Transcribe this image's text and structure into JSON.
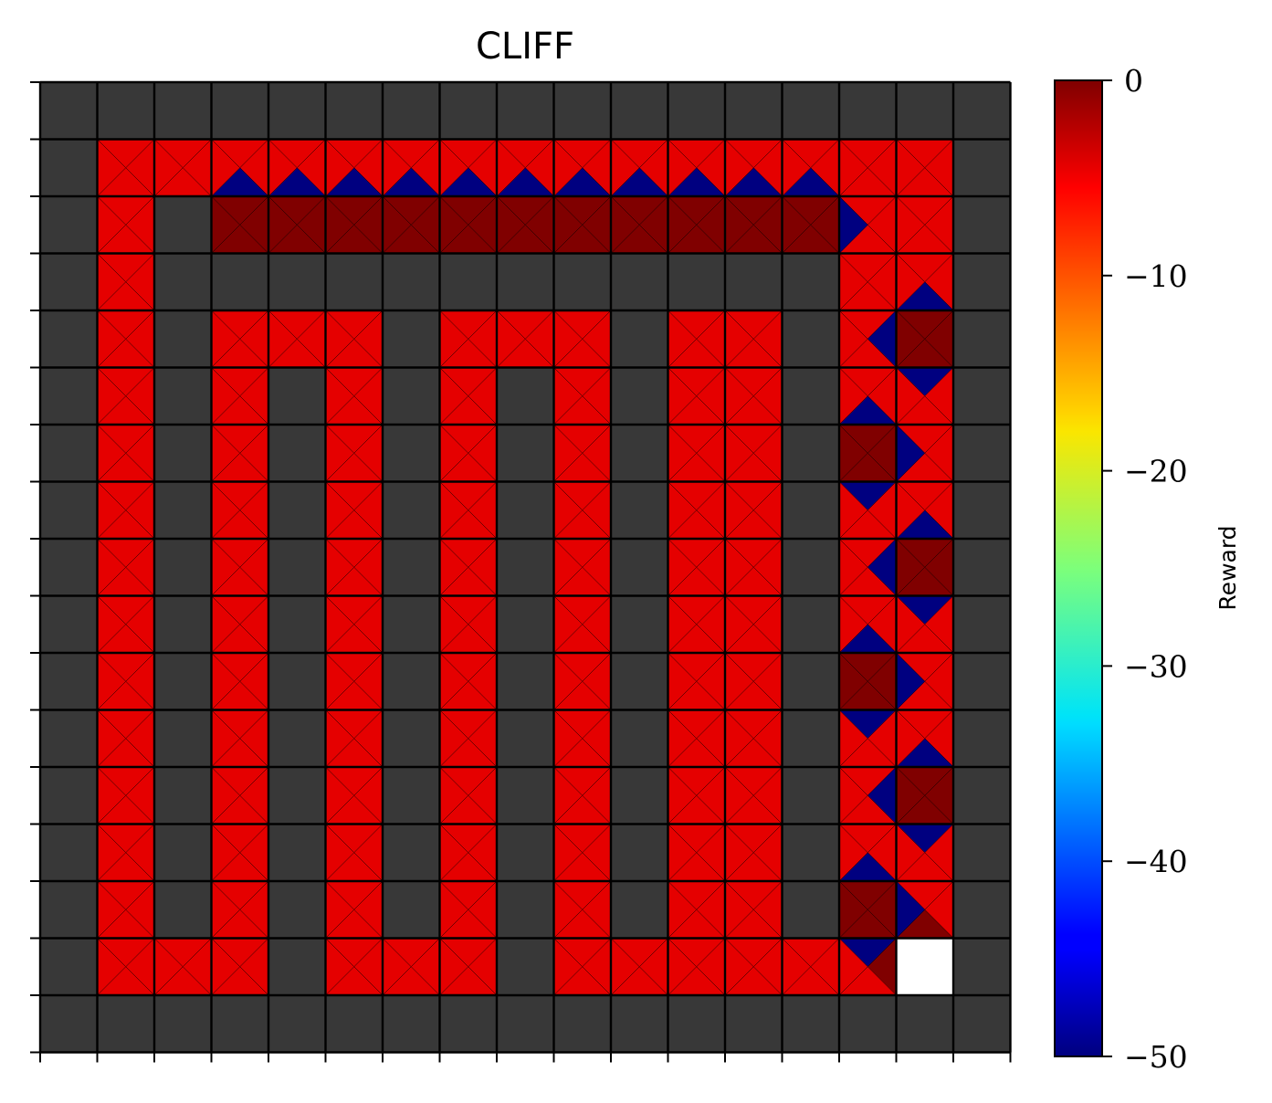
{
  "chart_data": {
    "type": "heatmap",
    "title": "CLIFF",
    "rows": 17,
    "cols": 17,
    "xlabel": "",
    "ylabel": "",
    "x_tick_labels": [],
    "y_tick_labels": [],
    "grid": true,
    "colormap": "jet",
    "colorbar": {
      "label": "Reward",
      "min": -50,
      "max": 0,
      "ticks": [
        0,
        -10,
        -20,
        -30,
        -40,
        -50
      ],
      "tick_labels": [
        "0",
        "−10",
        "−20",
        "−30",
        "−40",
        "−50"
      ],
      "placement": "right"
    },
    "wall_color": "#383838",
    "goal_color": "#ffffff",
    "cell_legend": {
      "W": "wall",
      "G": "goal",
      "R": "state"
    },
    "grid_cells": [
      "WWWWWWWWWWWWWWWWW",
      "WRRRRRRRRRRRRRRRW",
      "WRWRRRRRRRRRRRRRW",
      "WRWWWWWWWWWWWWRRW",
      "WRWRRRWRRRWRRWRRW",
      "WRWRWRWRWRWRRWRRW",
      "WRWRWRWRWRWRRWRRW",
      "WRWRWRWRWRWRRWRRW",
      "WRWRWRWRWRWRRWRRW",
      "WRWRWRWRWRWRRWRRW",
      "WRWRWRWRWRWRRWRRW",
      "WRWRWRWRWRWRRWRRW",
      "WRWRWRWRWRWRRWRRW",
      "WRWRWRWRWRWRRWRRW",
      "WRWRWRWRWRWRRWRRW",
      "WRRRWRRRWRRRRRRGW",
      "WWWWWWWWWWWWWWWWW"
    ],
    "state_triangle_values": {
      "description": "Each state cell is split into four triangles (up, right, down, left) colored by action reward; default -5",
      "default": -5,
      "cells": [
        {
          "row": 1,
          "col": 3,
          "up": -5,
          "right": -5,
          "down": -50,
          "left": -5
        },
        {
          "row": 1,
          "col": 4,
          "up": -5,
          "right": -5,
          "down": -50,
          "left": -5
        },
        {
          "row": 1,
          "col": 5,
          "up": -5,
          "right": -5,
          "down": -50,
          "left": -5
        },
        {
          "row": 1,
          "col": 6,
          "up": -5,
          "right": -5,
          "down": -50,
          "left": -5
        },
        {
          "row": 1,
          "col": 7,
          "up": -5,
          "right": -5,
          "down": -50,
          "left": -5
        },
        {
          "row": 1,
          "col": 8,
          "up": -5,
          "right": -5,
          "down": -50,
          "left": -5
        },
        {
          "row": 1,
          "col": 9,
          "up": -5,
          "right": -5,
          "down": -50,
          "left": -5
        },
        {
          "row": 1,
          "col": 10,
          "up": -5,
          "right": -5,
          "down": -50,
          "left": -5
        },
        {
          "row": 1,
          "col": 11,
          "up": -5,
          "right": -5,
          "down": -50,
          "left": -5
        },
        {
          "row": 1,
          "col": 12,
          "up": -5,
          "right": -5,
          "down": -50,
          "left": -5
        },
        {
          "row": 1,
          "col": 13,
          "up": -5,
          "right": -5,
          "down": -50,
          "left": -5
        },
        {
          "row": 2,
          "col": 3,
          "up": 0,
          "right": 0,
          "down": 0,
          "left": 0
        },
        {
          "row": 2,
          "col": 4,
          "up": 0,
          "right": 0,
          "down": 0,
          "left": 0
        },
        {
          "row": 2,
          "col": 5,
          "up": 0,
          "right": 0,
          "down": 0,
          "left": 0
        },
        {
          "row": 2,
          "col": 6,
          "up": 0,
          "right": 0,
          "down": 0,
          "left": 0
        },
        {
          "row": 2,
          "col": 7,
          "up": 0,
          "right": 0,
          "down": 0,
          "left": 0
        },
        {
          "row": 2,
          "col": 8,
          "up": 0,
          "right": 0,
          "down": 0,
          "left": 0
        },
        {
          "row": 2,
          "col": 9,
          "up": 0,
          "right": 0,
          "down": 0,
          "left": 0
        },
        {
          "row": 2,
          "col": 10,
          "up": 0,
          "right": 0,
          "down": 0,
          "left": 0
        },
        {
          "row": 2,
          "col": 11,
          "up": 0,
          "right": 0,
          "down": 0,
          "left": 0
        },
        {
          "row": 2,
          "col": 12,
          "up": 0,
          "right": 0,
          "down": 0,
          "left": 0
        },
        {
          "row": 2,
          "col": 13,
          "up": 0,
          "right": 0,
          "down": 0,
          "left": 0
        },
        {
          "row": 2,
          "col": 14,
          "up": -5,
          "right": -5,
          "down": -5,
          "left": -50
        },
        {
          "row": 3,
          "col": 15,
          "up": -5,
          "right": -5,
          "down": -50,
          "left": -5
        },
        {
          "row": 4,
          "col": 14,
          "up": -5,
          "right": -50,
          "down": -5,
          "left": -5
        },
        {
          "row": 4,
          "col": 15,
          "up": 0,
          "right": 0,
          "down": 0,
          "left": 0
        },
        {
          "row": 5,
          "col": 15,
          "up": -50,
          "right": -5,
          "down": -5,
          "left": -5
        },
        {
          "row": 5,
          "col": 14,
          "up": -5,
          "right": -5,
          "down": -50,
          "left": -5
        },
        {
          "row": 6,
          "col": 14,
          "up": 0,
          "right": 0,
          "down": 0,
          "left": 0
        },
        {
          "row": 6,
          "col": 15,
          "up": -5,
          "right": -5,
          "down": -5,
          "left": -50
        },
        {
          "row": 7,
          "col": 14,
          "up": -50,
          "right": -5,
          "down": -5,
          "left": -5
        },
        {
          "row": 7,
          "col": 15,
          "up": -5,
          "right": -5,
          "down": -50,
          "left": -5
        },
        {
          "row": 8,
          "col": 14,
          "up": -5,
          "right": -50,
          "down": -5,
          "left": -5
        },
        {
          "row": 8,
          "col": 15,
          "up": 0,
          "right": 0,
          "down": 0,
          "left": 0
        },
        {
          "row": 9,
          "col": 15,
          "up": -50,
          "right": -5,
          "down": -5,
          "left": -5
        },
        {
          "row": 9,
          "col": 14,
          "up": -5,
          "right": -5,
          "down": -50,
          "left": -5
        },
        {
          "row": 10,
          "col": 14,
          "up": 0,
          "right": 0,
          "down": 0,
          "left": 0
        },
        {
          "row": 10,
          "col": 15,
          "up": -5,
          "right": -5,
          "down": -5,
          "left": -50
        },
        {
          "row": 11,
          "col": 14,
          "up": -50,
          "right": -5,
          "down": -5,
          "left": -5
        },
        {
          "row": 11,
          "col": 15,
          "up": -5,
          "right": -5,
          "down": -50,
          "left": -5
        },
        {
          "row": 12,
          "col": 14,
          "up": -5,
          "right": -50,
          "down": -5,
          "left": -5
        },
        {
          "row": 12,
          "col": 15,
          "up": 0,
          "right": 0,
          "down": 0,
          "left": 0
        },
        {
          "row": 13,
          "col": 15,
          "up": -50,
          "right": -5,
          "down": -5,
          "left": -5
        },
        {
          "row": 13,
          "col": 14,
          "up": -5,
          "right": -5,
          "down": -50,
          "left": -5
        },
        {
          "row": 14,
          "col": 14,
          "up": 0,
          "right": 0,
          "down": 0,
          "left": 0
        },
        {
          "row": 14,
          "col": 15,
          "up": -5,
          "right": -5,
          "down": 0,
          "left": -50
        },
        {
          "row": 15,
          "col": 14,
          "up": -50,
          "right": 0,
          "down": -5,
          "left": -5
        }
      ]
    }
  }
}
